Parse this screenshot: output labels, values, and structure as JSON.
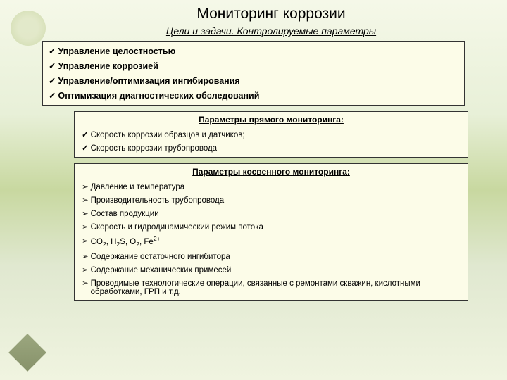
{
  "title": "Мониторинг коррозии",
  "subtitle": "Цели и задачи. Контролируемые параметры",
  "goals": {
    "items": [
      "Управление целостностью",
      "Управление коррозией",
      "Управление/оптимизация ингибирования",
      "Оптимизация диагностических обследований"
    ]
  },
  "direct": {
    "heading": "Параметры прямого мониторинга:",
    "items": [
      "Скорость коррозии образцов и датчиков;",
      "Скорость коррозии трубопровода"
    ]
  },
  "indirect": {
    "heading": "Параметры косвенного мониторинга:",
    "items": [
      "Давление и температура",
      "Производительность трубопровода",
      "Состав продукции",
      "Скорость и гидродинамический режим потока",
      "",
      "Содержание остаточного ингибитора",
      "Содержание механических примесей",
      "Проводимые технологические операции, связанные с ремонтами скважин, кислотными обработками, ГРП и т.д."
    ],
    "chemical_item_prefix": "CO",
    "chemical_item_full": "CO₂, H₂S, O₂, Fe²⁺"
  },
  "styling": {
    "bg_gradient": [
      "#f5f8e8",
      "#e8f0d8",
      "#c8d8a0",
      "#e0e8d0",
      "#f0f4e0"
    ],
    "box_bg": "#fcfce8",
    "box_border": "#333333",
    "text_color": "#000000",
    "title_fontsize": 21,
    "subtitle_fontsize": 14,
    "goals_fontsize": 12.5,
    "item_fontsize": 11.5,
    "check_mark": "✓",
    "arrow_mark": "➢"
  }
}
